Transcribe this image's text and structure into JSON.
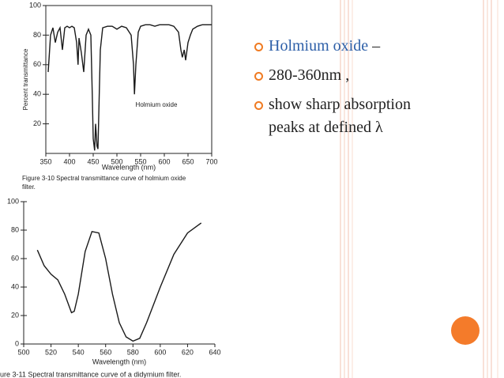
{
  "chart_data": [
    {
      "type": "line",
      "y_label": "Percent transmittance",
      "x_label": "Wavelength (nm)",
      "annotation": "Holmium oxide",
      "caption": [
        "Figure 3-10 Spectral transmittance curve of holmium oxide",
        "filter."
      ],
      "color": "#1a1a1a",
      "box": true,
      "xlim": [
        350,
        700
      ],
      "xticks": [
        350,
        400,
        450,
        500,
        550,
        600,
        650,
        700
      ],
      "ylim": [
        0,
        100
      ],
      "yticks": [
        20,
        40,
        60,
        80,
        100
      ],
      "x": [
        355,
        360,
        365,
        370,
        375,
        380,
        385,
        390,
        395,
        400,
        405,
        410,
        415,
        418,
        420,
        425,
        430,
        435,
        440,
        445,
        448,
        450,
        453,
        455,
        458,
        460,
        462,
        465,
        470,
        480,
        490,
        500,
        510,
        520,
        530,
        535,
        537,
        540,
        545,
        550,
        560,
        570,
        580,
        590,
        600,
        610,
        620,
        630,
        635,
        638,
        642,
        645,
        650,
        655,
        660,
        670,
        680,
        690,
        700
      ],
      "values": [
        55,
        80,
        85,
        75,
        82,
        85,
        70,
        85,
        86,
        85,
        86,
        85,
        75,
        60,
        78,
        68,
        55,
        80,
        84,
        80,
        40,
        10,
        2,
        20,
        5,
        3,
        30,
        70,
        85,
        86,
        86,
        84,
        86,
        85,
        80,
        60,
        40,
        60,
        82,
        86,
        87,
        87,
        86,
        87,
        87,
        87,
        86,
        82,
        70,
        65,
        70,
        63,
        75,
        80,
        84,
        86,
        87,
        87,
        87
      ]
    },
    {
      "type": "line",
      "x_label": "Wavelength (nm)",
      "caption": [
        "ure 3-11 Spectral transmittance curve of a didymium filter."
      ],
      "color": "#1a1a1a",
      "box": false,
      "xlim": [
        500,
        640
      ],
      "xticks": [
        500,
        520,
        540,
        560,
        580,
        600,
        620,
        640
      ],
      "ylim": [
        0,
        100
      ],
      "yticks": [
        0,
        20,
        40,
        60,
        80,
        100
      ],
      "x": [
        510,
        515,
        520,
        525,
        530,
        535,
        537,
        540,
        545,
        550,
        555,
        560,
        565,
        570,
        575,
        580,
        585,
        590,
        600,
        610,
        620,
        630
      ],
      "values": [
        66,
        55,
        49,
        45,
        35,
        22,
        23,
        35,
        65,
        79,
        78,
        60,
        35,
        15,
        5,
        2,
        4,
        15,
        40,
        63,
        78,
        85
      ]
    }
  ],
  "bullets": [
    {
      "highlight": "Holmium oxide",
      "text": "–"
    },
    {
      "text": "280-360nm ,"
    },
    {
      "text": "show sharp absorption peaks at defined λ"
    }
  ]
}
